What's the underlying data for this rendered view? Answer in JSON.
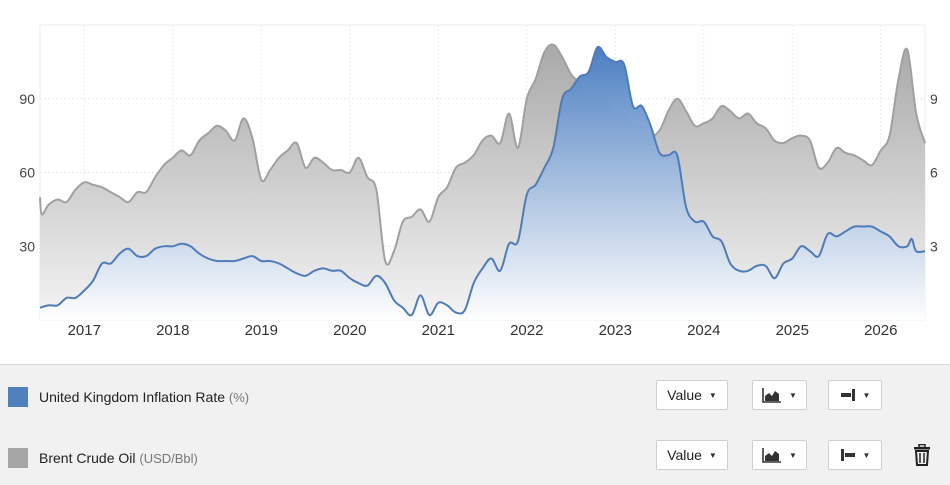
{
  "chart_data": {
    "type": "area",
    "x_ticks": [
      "2017",
      "2018",
      "2019",
      "2020",
      "2021",
      "2022",
      "2023",
      "2024",
      "2025",
      "2026"
    ],
    "y_left_ticks": [
      "30",
      "60",
      "90"
    ],
    "y_right_ticks": [
      "3",
      "6",
      "9"
    ],
    "ylim_left": [
      0,
      120
    ],
    "ylim_right": [
      0,
      12
    ],
    "grid": true,
    "series": [
      {
        "name": "United Kingdom Inflation Rate",
        "unit": "(%)",
        "axis": "right",
        "color": "#4f81bd",
        "points": [
          [
            2016.5,
            0.5
          ],
          [
            2016.6,
            0.6
          ],
          [
            2016.7,
            0.6
          ],
          [
            2016.8,
            0.9
          ],
          [
            2016.9,
            0.9
          ],
          [
            2017.0,
            1.2
          ],
          [
            2017.1,
            1.6
          ],
          [
            2017.2,
            2.3
          ],
          [
            2017.3,
            2.3
          ],
          [
            2017.4,
            2.7
          ],
          [
            2017.5,
            2.9
          ],
          [
            2017.6,
            2.6
          ],
          [
            2017.7,
            2.6
          ],
          [
            2017.8,
            2.9
          ],
          [
            2017.9,
            3.0
          ],
          [
            2018.0,
            3.0
          ],
          [
            2018.1,
            3.1
          ],
          [
            2018.2,
            3.0
          ],
          [
            2018.3,
            2.7
          ],
          [
            2018.4,
            2.5
          ],
          [
            2018.5,
            2.4
          ],
          [
            2018.6,
            2.4
          ],
          [
            2018.7,
            2.4
          ],
          [
            2018.8,
            2.5
          ],
          [
            2018.9,
            2.6
          ],
          [
            2019.0,
            2.4
          ],
          [
            2019.1,
            2.4
          ],
          [
            2019.2,
            2.3
          ],
          [
            2019.3,
            2.1
          ],
          [
            2019.4,
            1.9
          ],
          [
            2019.5,
            1.8
          ],
          [
            2019.6,
            2.0
          ],
          [
            2019.7,
            2.1
          ],
          [
            2019.8,
            2.0
          ],
          [
            2019.9,
            2.0
          ],
          [
            2020.0,
            1.7
          ],
          [
            2020.1,
            1.5
          ],
          [
            2020.2,
            1.4
          ],
          [
            2020.3,
            1.8
          ],
          [
            2020.4,
            1.5
          ],
          [
            2020.5,
            0.8
          ],
          [
            2020.6,
            0.5
          ],
          [
            2020.7,
            0.2
          ],
          [
            2020.8,
            1.0
          ],
          [
            2020.9,
            0.2
          ],
          [
            2021.0,
            0.7
          ],
          [
            2021.1,
            0.6
          ],
          [
            2021.2,
            0.3
          ],
          [
            2021.3,
            0.4
          ],
          [
            2021.4,
            1.5
          ],
          [
            2021.5,
            2.1
          ],
          [
            2021.6,
            2.5
          ],
          [
            2021.7,
            2.0
          ],
          [
            2021.8,
            3.1
          ],
          [
            2021.9,
            3.2
          ],
          [
            2022.0,
            5.1
          ],
          [
            2022.1,
            5.5
          ],
          [
            2022.2,
            6.2
          ],
          [
            2022.3,
            7.0
          ],
          [
            2022.4,
            9.0
          ],
          [
            2022.5,
            9.4
          ],
          [
            2022.6,
            9.9
          ],
          [
            2022.7,
            10.1
          ],
          [
            2022.8,
            11.1
          ],
          [
            2022.9,
            10.7
          ],
          [
            2023.0,
            10.5
          ],
          [
            2023.1,
            10.4
          ],
          [
            2023.2,
            8.7
          ],
          [
            2023.3,
            8.7
          ],
          [
            2023.4,
            7.9
          ],
          [
            2023.5,
            6.8
          ],
          [
            2023.6,
            6.7
          ],
          [
            2023.7,
            6.7
          ],
          [
            2023.8,
            4.6
          ],
          [
            2023.9,
            4.0
          ],
          [
            2024.0,
            4.0
          ],
          [
            2024.1,
            3.4
          ],
          [
            2024.2,
            3.2
          ],
          [
            2024.3,
            2.3
          ],
          [
            2024.4,
            2.0
          ],
          [
            2024.5,
            2.0
          ],
          [
            2024.6,
            2.2
          ],
          [
            2024.7,
            2.2
          ],
          [
            2024.8,
            1.7
          ],
          [
            2024.9,
            2.3
          ],
          [
            2025.0,
            2.5
          ],
          [
            2025.1,
            3.0
          ],
          [
            2025.2,
            2.8
          ],
          [
            2025.3,
            2.6
          ],
          [
            2025.4,
            3.5
          ],
          [
            2025.5,
            3.4
          ],
          [
            2025.6,
            3.6
          ],
          [
            2025.7,
            3.8
          ],
          [
            2025.8,
            3.8
          ],
          [
            2025.9,
            3.8
          ],
          [
            2026.0,
            3.6
          ],
          [
            2026.1,
            3.4
          ],
          [
            2026.2,
            3.0
          ],
          [
            2026.3,
            3.0
          ],
          [
            2026.35,
            3.3
          ],
          [
            2026.4,
            2.8
          ],
          [
            2026.5,
            2.8
          ]
        ]
      },
      {
        "name": "Brent Crude Oil",
        "unit": "(USD/Bbl)",
        "axis": "left",
        "color": "#a6a6a6",
        "points": [
          [
            2016.5,
            50
          ],
          [
            2016.52,
            43
          ],
          [
            2016.6,
            47
          ],
          [
            2016.7,
            49
          ],
          [
            2016.8,
            48
          ],
          [
            2016.9,
            53
          ],
          [
            2017.0,
            56
          ],
          [
            2017.1,
            55
          ],
          [
            2017.2,
            54
          ],
          [
            2017.3,
            52
          ],
          [
            2017.4,
            50
          ],
          [
            2017.5,
            48
          ],
          [
            2017.6,
            52
          ],
          [
            2017.7,
            52
          ],
          [
            2017.8,
            58
          ],
          [
            2017.9,
            63
          ],
          [
            2018.0,
            66
          ],
          [
            2018.1,
            69
          ],
          [
            2018.2,
            67
          ],
          [
            2018.3,
            73
          ],
          [
            2018.4,
            76
          ],
          [
            2018.5,
            79
          ],
          [
            2018.6,
            77
          ],
          [
            2018.7,
            73
          ],
          [
            2018.8,
            82
          ],
          [
            2018.9,
            74
          ],
          [
            2019.0,
            57
          ],
          [
            2019.1,
            61
          ],
          [
            2019.2,
            66
          ],
          [
            2019.3,
            69
          ],
          [
            2019.4,
            72
          ],
          [
            2019.5,
            62
          ],
          [
            2019.6,
            66
          ],
          [
            2019.7,
            64
          ],
          [
            2019.8,
            61
          ],
          [
            2019.9,
            61
          ],
          [
            2020.0,
            60
          ],
          [
            2020.1,
            66
          ],
          [
            2020.2,
            58
          ],
          [
            2020.3,
            53
          ],
          [
            2020.4,
            24
          ],
          [
            2020.5,
            28
          ],
          [
            2020.6,
            40
          ],
          [
            2020.7,
            42
          ],
          [
            2020.8,
            45
          ],
          [
            2020.9,
            40
          ],
          [
            2021.0,
            50
          ],
          [
            2021.1,
            54
          ],
          [
            2021.2,
            62
          ],
          [
            2021.3,
            64
          ],
          [
            2021.4,
            67
          ],
          [
            2021.5,
            73
          ],
          [
            2021.6,
            75
          ],
          [
            2021.7,
            72
          ],
          [
            2021.8,
            84
          ],
          [
            2021.9,
            70
          ],
          [
            2022.0,
            90
          ],
          [
            2022.1,
            98
          ],
          [
            2022.2,
            109
          ],
          [
            2022.3,
            112
          ],
          [
            2022.4,
            107
          ],
          [
            2022.5,
            100
          ],
          [
            2022.6,
            96
          ],
          [
            2022.7,
            88
          ],
          [
            2022.8,
            92
          ],
          [
            2022.9,
            88
          ],
          [
            2023.0,
            84
          ],
          [
            2023.1,
            83
          ],
          [
            2023.2,
            79
          ],
          [
            2023.3,
            78
          ],
          [
            2023.4,
            75
          ],
          [
            2023.5,
            77
          ],
          [
            2023.6,
            85
          ],
          [
            2023.7,
            90
          ],
          [
            2023.8,
            85
          ],
          [
            2023.9,
            79
          ],
          [
            2024.0,
            80
          ],
          [
            2024.1,
            82
          ],
          [
            2024.2,
            87
          ],
          [
            2024.3,
            85
          ],
          [
            2024.4,
            82
          ],
          [
            2024.5,
            84
          ],
          [
            2024.6,
            80
          ],
          [
            2024.7,
            78
          ],
          [
            2024.8,
            73
          ],
          [
            2024.9,
            72
          ],
          [
            2025.0,
            74
          ],
          [
            2025.1,
            75
          ],
          [
            2025.2,
            73
          ],
          [
            2025.3,
            62
          ],
          [
            2025.4,
            64
          ],
          [
            2025.5,
            70
          ],
          [
            2025.6,
            68
          ],
          [
            2025.7,
            67
          ],
          [
            2025.8,
            65
          ],
          [
            2025.9,
            63
          ],
          [
            2026.0,
            69
          ],
          [
            2026.1,
            75
          ],
          [
            2026.2,
            98
          ],
          [
            2026.3,
            110
          ],
          [
            2026.4,
            84
          ],
          [
            2026.5,
            72
          ]
        ]
      }
    ]
  },
  "legend": {
    "rows": [
      {
        "name": "United Kingdom Inflation Rate",
        "unit": "(%)",
        "color": "#4f81bd",
        "value_label": "Value",
        "chart_type": "area-chart-icon",
        "axis": "right-axis-icon"
      },
      {
        "name": "Brent Crude Oil",
        "unit": "(USD/Bbl)",
        "color": "#a6a6a6",
        "value_label": "Value",
        "chart_type": "area-chart-icon",
        "axis": "left-axis-icon"
      }
    ],
    "delete_icon": "trash-icon"
  }
}
